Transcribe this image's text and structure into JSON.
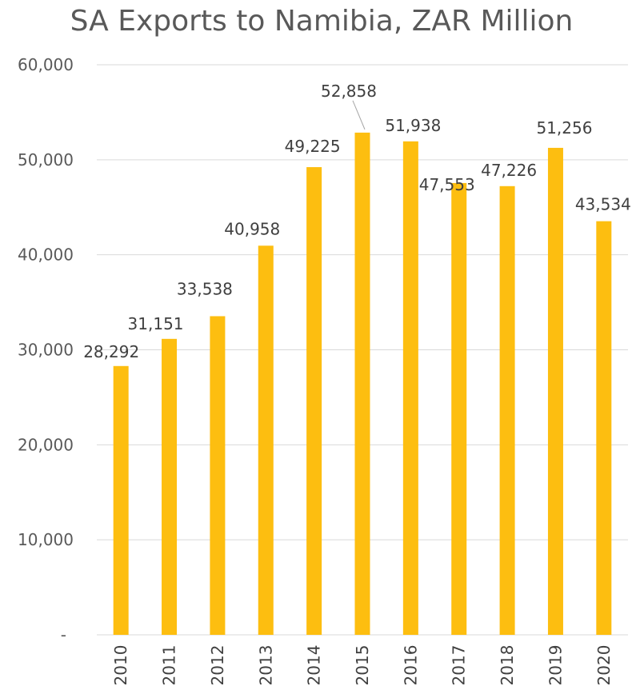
{
  "colors": {
    "bar": "#FDBE10",
    "grid": "#D9D9D9",
    "text": "#595959"
  },
  "chart_data": {
    "type": "bar",
    "title": "SA Exports to Namibia, ZAR Million",
    "xlabel": "",
    "ylabel": "",
    "categories": [
      "2010",
      "2011",
      "2012",
      "2013",
      "2014",
      "2015",
      "2016",
      "2017",
      "2018",
      "2019",
      "2020"
    ],
    "values": [
      28292,
      31151,
      33538,
      40958,
      49225,
      52858,
      51938,
      47553,
      47226,
      51256,
      43534
    ],
    "data_labels": [
      "28,292",
      "31,151",
      "33,538",
      "40,958",
      "49,225",
      "52,858",
      "51,938",
      "47,553",
      "47,226",
      "51,256",
      "43,534"
    ],
    "ylim": [
      0,
      60000
    ],
    "yticks": [
      0,
      10000,
      20000,
      30000,
      40000,
      50000,
      60000
    ],
    "ytick_labels": [
      "-",
      "10,000",
      "20,000",
      "30,000",
      "40,000",
      "50,000",
      "60,000"
    ],
    "grid": true,
    "legend": "none"
  }
}
